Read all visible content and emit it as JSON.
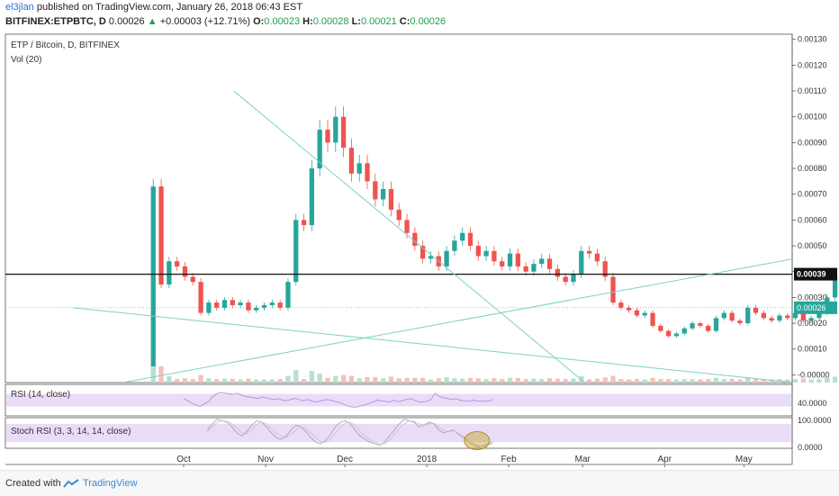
{
  "header": {
    "author": "el3jlan",
    "published_text": "published on TradingView.com, January 26, 2018 06:43 EST",
    "symbol": "BITFINEX:ETPBTC, D",
    "last": "0.00026",
    "change": "+0.00003 (+12.71%)",
    "o_label": "O:",
    "o": "0.00023",
    "h_label": "H:",
    "h": "0.00028",
    "l_label": "L:",
    "l": "0.00021",
    "c_label": "C:",
    "c": "0.00026"
  },
  "footer": {
    "created_with": "Created with",
    "brand": "TradingView"
  },
  "colors": {
    "up": "#26a69a",
    "down": "#ef5350",
    "line": "#7fd1bf",
    "rsi_band": "#eadcf7",
    "vol_up": "#b9dfcf",
    "vol_down": "#f2c2b9",
    "vol_ma": "#f4a582",
    "price_tag": "#26a69a"
  },
  "chart_data": {
    "type": "candlestick",
    "title": "ETP / Bitcoin, D, BITFINEX",
    "volume_label": "Vol (20)",
    "y_ticks": [
      "0.00130",
      "0.00120",
      "0.00110",
      "0.00100",
      "0.00090",
      "0.00080",
      "0.00070",
      "0.00060",
      "0.00050",
      "0.00040",
      "0.00030",
      "0.00020",
      "0.00010",
      "-0.00000"
    ],
    "y_tick_values": [
      0.0013,
      0.0012,
      0.0011,
      0.001,
      0.0009,
      0.0008,
      0.0007,
      0.0006,
      0.0005,
      0.0004,
      0.0003,
      0.0002,
      0.0001,
      0.0
    ],
    "ylim": [
      -3e-05,
      0.00132
    ],
    "x_ticks": [
      {
        "label": "Oct",
        "date": "2017-10-01"
      },
      {
        "label": "Nov",
        "date": "2017-11-01"
      },
      {
        "label": "Dec",
        "date": "2017-12-01"
      },
      {
        "label": "2018",
        "date": "2018-01-01"
      },
      {
        "label": "Feb",
        "date": "2018-02-01"
      },
      {
        "label": "Mar",
        "date": "2018-03-01"
      },
      {
        "label": "Apr",
        "date": "2018-04-01"
      },
      {
        "label": "May",
        "date": "2018-05-01"
      }
    ],
    "start_date": "2017-09-18",
    "close_series": [
      0.00073,
      0.00035,
      0.00044,
      0.00042,
      0.00038,
      0.00036,
      0.00024,
      0.00028,
      0.00026,
      0.00029,
      0.00027,
      0.00028,
      0.00025,
      0.00026,
      0.00027,
      0.00028,
      0.00026,
      0.00036,
      0.0006,
      0.00058,
      0.0008,
      0.00095,
      0.0009,
      0.001,
      0.00088,
      0.00078,
      0.00082,
      0.00075,
      0.00068,
      0.00072,
      0.00064,
      0.0006,
      0.00055,
      0.0005,
      0.00045,
      0.00046,
      0.00042,
      0.00048,
      0.00052,
      0.00055,
      0.0005,
      0.00046,
      0.00048,
      0.00044,
      0.00042,
      0.00047,
      0.00042,
      0.0004,
      0.00043,
      0.00045,
      0.00041,
      0.00038,
      0.00036,
      0.00039,
      0.00048,
      0.00047,
      0.00044,
      0.00038,
      0.00028,
      0.00026,
      0.00025,
      0.00023,
      0.00024,
      0.00019,
      0.00017,
      0.00015,
      0.00016,
      0.00018,
      0.0002,
      0.00019,
      0.00017,
      0.00022,
      0.00024,
      0.00021,
      0.0002,
      0.00026,
      0.00024,
      0.00022,
      0.00021,
      0.00023,
      0.00022,
      0.00024,
      0.00021,
      0.00022,
      0.00024,
      0.0003,
      0.00038,
      0.00034,
      0.00032,
      0.00029,
      0.00031,
      0.00028,
      0.00025,
      0.00027,
      0.00026,
      0.00023,
      0.00024,
      0.00022,
      0.00023,
      0.00024,
      0.00022,
      0.00023,
      0.00026
    ],
    "last_price": "0.00026",
    "horizontal_level": {
      "value": 0.00039,
      "label": "0.00039"
    },
    "trendlines": [
      {
        "x1": "2017-10-20",
        "y1": 0.0011,
        "x2": "2018-03-10",
        "y2": -0.0001
      },
      {
        "x1": "2017-09-08",
        "y1": -3e-05,
        "x2": "2018-05-20",
        "y2": 0.00045
      },
      {
        "x1": "2017-08-20",
        "y1": 0.00026,
        "x2": "2018-05-20",
        "y2": -3e-05
      }
    ],
    "rsi": {
      "label": "RSI (14, close)",
      "tick": "40.0000",
      "lim": [
        0,
        100
      ],
      "band": [
        30,
        70
      ],
      "values": [
        55,
        48,
        40,
        35,
        30,
        38,
        45,
        60,
        70,
        75,
        72,
        70,
        68,
        72,
        66,
        62,
        60,
        58,
        55,
        60,
        58,
        54,
        52,
        55,
        50,
        48,
        52,
        56,
        52,
        48,
        52,
        48,
        44,
        46,
        50,
        52,
        48,
        45,
        42,
        36,
        30,
        28,
        28,
        32,
        35,
        40,
        45,
        50,
        48,
        46,
        44,
        50,
        45,
        48,
        52,
        55,
        50,
        44,
        44,
        46,
        52,
        72,
        62,
        58,
        55,
        52,
        55,
        50,
        48,
        46,
        50,
        48,
        47,
        46,
        48,
        52
      ]
    },
    "stoch_rsi": {
      "label": "Stoch RSI (3, 3, 14, 14, close)",
      "ticks": [
        "100.0000",
        "0.0000"
      ],
      "lim": [
        0,
        100
      ],
      "band": [
        20,
        80
      ],
      "k": [
        60,
        80,
        95,
        90,
        85,
        70,
        50,
        40,
        55,
        75,
        90,
        85,
        70,
        50,
        35,
        30,
        40,
        60,
        75,
        70,
        55,
        35,
        20,
        15,
        25,
        45,
        70,
        85,
        90,
        80,
        60,
        40,
        30,
        20,
        15,
        10,
        20,
        40,
        60,
        80,
        95,
        90,
        85,
        70,
        75,
        85,
        80,
        60,
        50,
        55,
        60,
        45,
        35,
        20,
        10,
        5,
        8,
        15,
        20
      ],
      "d": [
        55,
        70,
        85,
        90,
        88,
        80,
        65,
        50,
        48,
        60,
        78,
        85,
        80,
        65,
        50,
        40,
        35,
        45,
        60,
        70,
        65,
        50,
        35,
        22,
        20,
        30,
        50,
        70,
        82,
        85,
        75,
        55,
        40,
        28,
        20,
        15,
        15,
        25,
        45,
        65,
        80,
        90,
        88,
        80,
        75,
        80,
        82,
        70,
        58,
        54,
        58,
        50,
        40,
        28,
        16,
        8,
        6,
        10,
        16
      ]
    }
  }
}
